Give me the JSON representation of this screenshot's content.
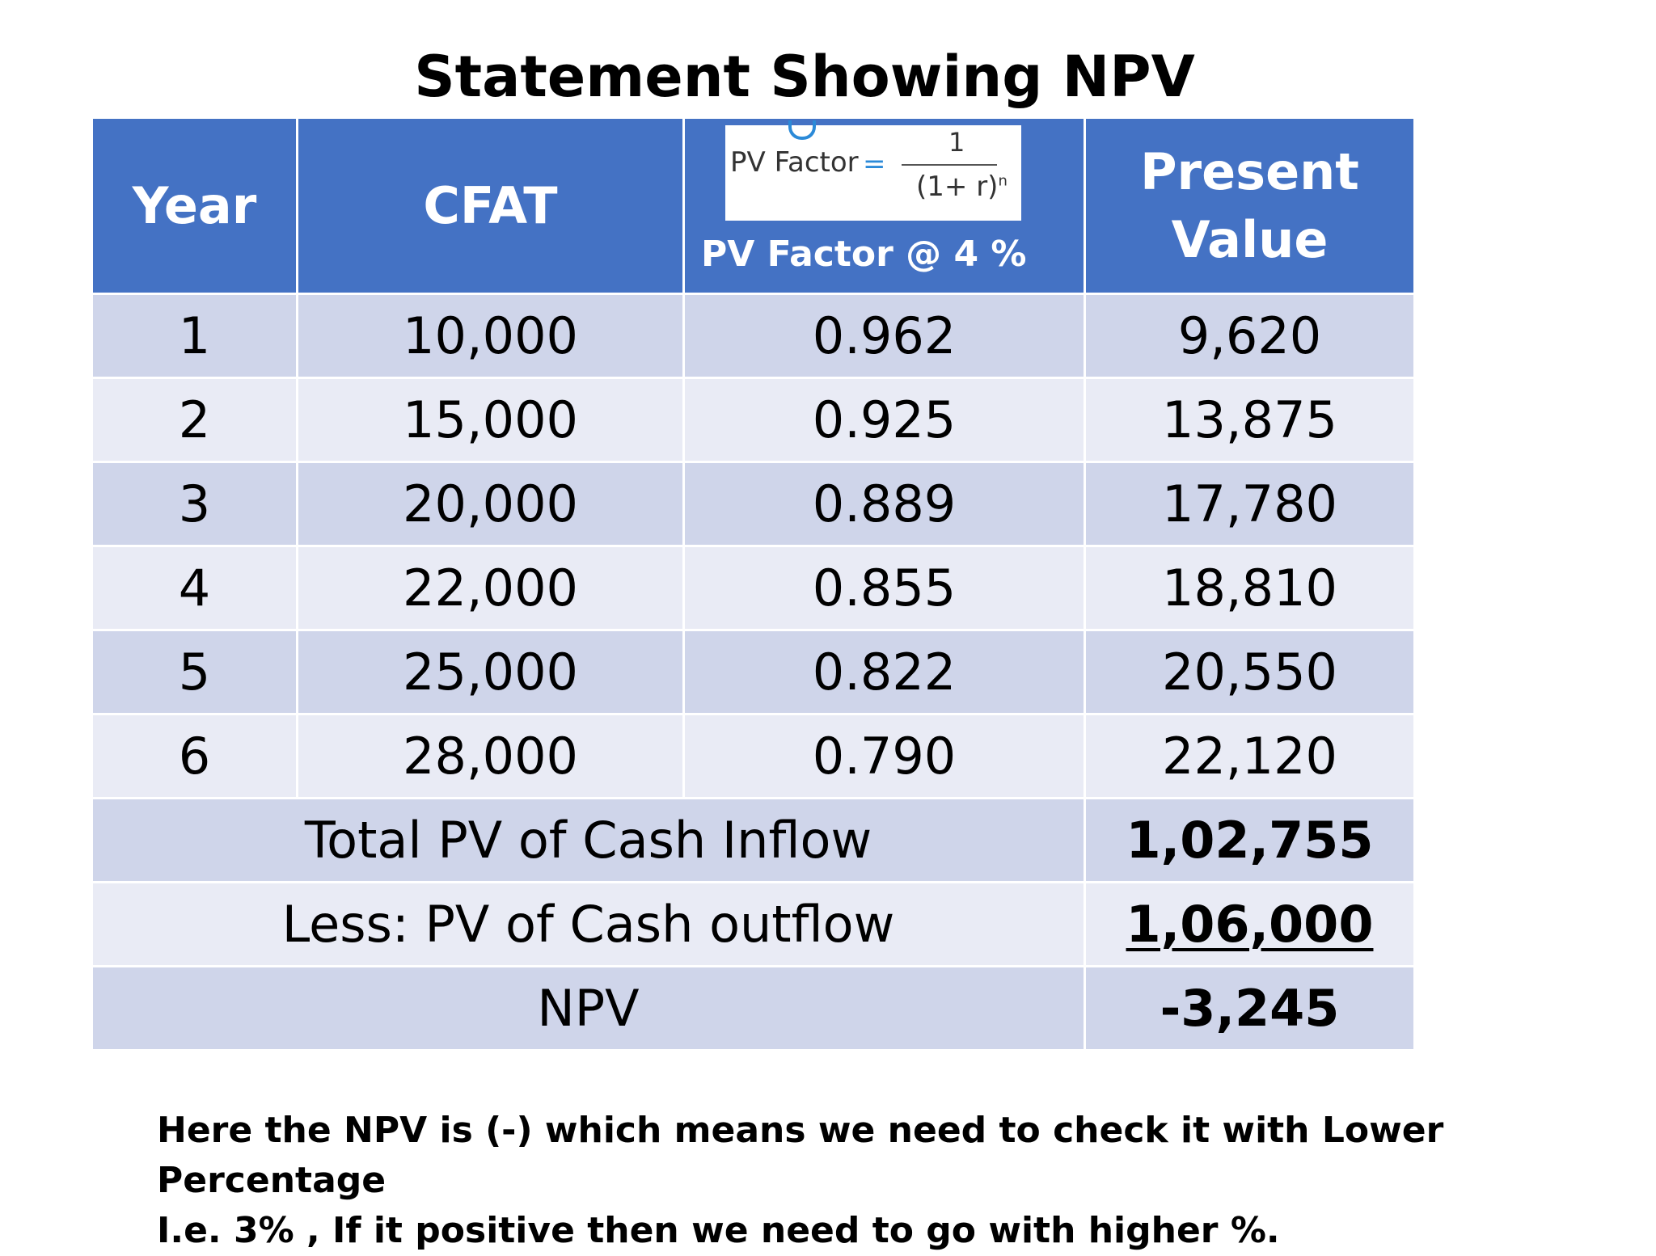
{
  "title": "Statement Showing NPV",
  "headers": {
    "year": "Year",
    "cfat": "CFAT",
    "pv_factor_label": "PV Factor @ 4 %",
    "present_value_line1": "Present",
    "present_value_line2": "Value"
  },
  "formula": {
    "label": "PV Factor",
    "equals": "=",
    "numerator": "1",
    "denominator": "(1+ r)",
    "exponent": "n"
  },
  "rows": [
    {
      "year": "1",
      "cfat": "10,000",
      "pv_factor": "0.962",
      "present_value": "9,620"
    },
    {
      "year": "2",
      "cfat": "15,000",
      "pv_factor": "0.925",
      "present_value": "13,875"
    },
    {
      "year": "3",
      "cfat": "20,000",
      "pv_factor": "0.889",
      "present_value": "17,780"
    },
    {
      "year": "4",
      "cfat": "22,000",
      "pv_factor": "0.855",
      "present_value": "18,810"
    },
    {
      "year": "5",
      "cfat": "25,000",
      "pv_factor": "0.822",
      "present_value": "20,550"
    },
    {
      "year": "6",
      "cfat": "28,000",
      "pv_factor": "0.790",
      "present_value": "22,120"
    }
  ],
  "summary": {
    "total_label": "Total PV of Cash Inflow",
    "total_value": "1,02,755",
    "outflow_label": "Less: PV of Cash outflow",
    "outflow_value": "1,06,000",
    "npv_label": "NPV",
    "npv_value": "-3,245"
  },
  "note": {
    "line1": "Here the NPV is (-) which means we need to check it with Lower Percentage",
    "line2": "I.e. 3% , If it positive then we need to go with higher %."
  },
  "colors": {
    "header_bg": "#4472c4",
    "band_dark": "#cfd5ea",
    "band_light": "#e9ebf5"
  }
}
